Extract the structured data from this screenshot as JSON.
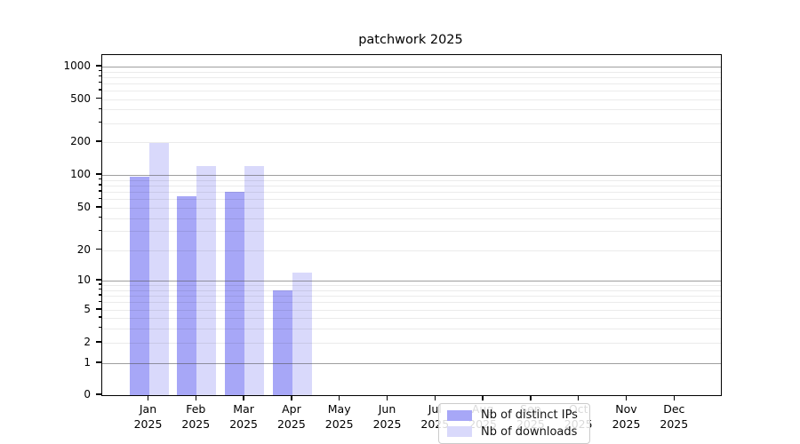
{
  "chart_data": {
    "type": "bar",
    "title": "patchwork 2025",
    "categories": [
      "Jan 2025",
      "Feb 2025",
      "Mar 2025",
      "Apr 2025",
      "May 2025",
      "Jun 2025",
      "Jul 2025",
      "Aug 2025",
      "Sep 2025",
      "Oct 2025",
      "Nov 2025",
      "Dec 2025"
    ],
    "series": [
      {
        "name": "Nb of distinct IPs",
        "color": "#a7a7f7",
        "values": [
          96,
          64,
          70,
          8,
          0,
          0,
          0,
          0,
          0,
          0,
          0,
          0
        ]
      },
      {
        "name": "Nb of downloads",
        "color": "#d9d9fb",
        "values": [
          195,
          120,
          120,
          12,
          0,
          0,
          0,
          0,
          0,
          0,
          0,
          0
        ]
      }
    ],
    "y_ticks": [
      0,
      1,
      2,
      5,
      10,
      20,
      50,
      100,
      200,
      500,
      1000
    ],
    "y_scale": "symlog",
    "ylim": [
      0,
      1300
    ],
    "grid": true,
    "legend_position": "bottom-center"
  }
}
